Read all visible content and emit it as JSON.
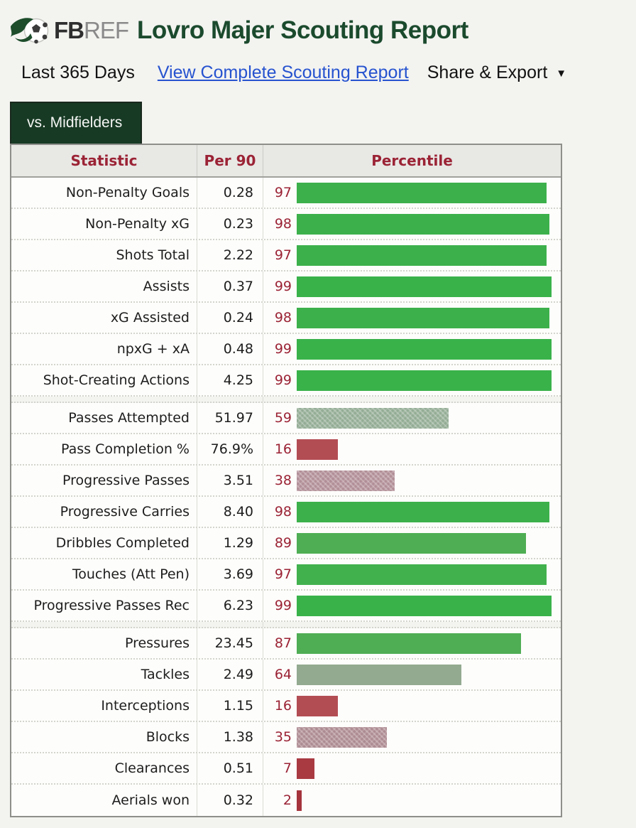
{
  "header": {
    "logo_fb": "FB",
    "logo_ref": "REF",
    "title": "Lovro Majer Scouting Report"
  },
  "toolbar": {
    "period_label": "Last 365 Days",
    "link_label": "View Complete Scouting Report",
    "share_label": "Share & Export",
    "share_caret": "▼"
  },
  "tab": {
    "label": "vs. Midfielders"
  },
  "colors": {
    "title_green": "#1b4a2d",
    "tab_green": "#173a24",
    "header_red": "#9b2335",
    "link_blue": "#2653cf",
    "green_high": "#3cb14b",
    "gray_mid": "#93ac94",
    "red_low": "#a93a42"
  },
  "table": {
    "columns": [
      "Statistic",
      "Per 90",
      "Percentile"
    ],
    "groups": [
      {
        "rows": [
          {
            "stat": "Non-Penalty Goals",
            "per90": "0.28",
            "percentile": 97,
            "bar_color": "#3cb14b",
            "textured": false
          },
          {
            "stat": "Non-Penalty xG",
            "per90": "0.23",
            "percentile": 98,
            "bar_color": "#3cb14b",
            "textured": false
          },
          {
            "stat": "Shots Total",
            "per90": "2.22",
            "percentile": 97,
            "bar_color": "#3cb14b",
            "textured": false
          },
          {
            "stat": "Assists",
            "per90": "0.37",
            "percentile": 99,
            "bar_color": "#39b24a",
            "textured": false
          },
          {
            "stat": "xG Assisted",
            "per90": "0.24",
            "percentile": 98,
            "bar_color": "#3cb14b",
            "textured": false
          },
          {
            "stat": "npxG + xA",
            "per90": "0.48",
            "percentile": 99,
            "bar_color": "#39b24a",
            "textured": false
          },
          {
            "stat": "Shot-Creating Actions",
            "per90": "4.25",
            "percentile": 99,
            "bar_color": "#39b24a",
            "textured": false
          }
        ]
      },
      {
        "rows": [
          {
            "stat": "Passes Attempted",
            "per90": "51.97",
            "percentile": 59,
            "bar_color": "#93ac94",
            "textured": true
          },
          {
            "stat": "Pass Completion %",
            "per90": "76.9%",
            "percentile": 16,
            "bar_color": "#b34d54",
            "textured": false
          },
          {
            "stat": "Progressive Passes",
            "per90": "3.51",
            "percentile": 38,
            "bar_color": "#b18e97",
            "textured": true
          },
          {
            "stat": "Progressive Carries",
            "per90": "8.40",
            "percentile": 98,
            "bar_color": "#3cb14b",
            "textured": false
          },
          {
            "stat": "Dribbles Completed",
            "per90": "1.29",
            "percentile": 89,
            "bar_color": "#4fae53",
            "textured": false
          },
          {
            "stat": "Touches (Att Pen)",
            "per90": "3.69",
            "percentile": 97,
            "bar_color": "#41b14d",
            "textured": false
          },
          {
            "stat": "Progressive Passes Rec",
            "per90": "6.23",
            "percentile": 99,
            "bar_color": "#39b24a",
            "textured": false
          }
        ]
      },
      {
        "rows": [
          {
            "stat": "Pressures",
            "per90": "23.45",
            "percentile": 87,
            "bar_color": "#4fad54",
            "textured": false
          },
          {
            "stat": "Tackles",
            "per90": "2.49",
            "percentile": 64,
            "bar_color": "#93aa90",
            "textured": false
          },
          {
            "stat": "Interceptions",
            "per90": "1.15",
            "percentile": 16,
            "bar_color": "#b34d54",
            "textured": false
          },
          {
            "stat": "Blocks",
            "per90": "1.38",
            "percentile": 35,
            "bar_color": "#ad8b92",
            "textured": true
          },
          {
            "stat": "Clearances",
            "per90": "0.51",
            "percentile": 7,
            "bar_color": "#a93a42",
            "textured": false
          },
          {
            "stat": "Aerials won",
            "per90": "0.32",
            "percentile": 2,
            "bar_color": "#a5343d",
            "textured": false
          }
        ]
      }
    ]
  }
}
